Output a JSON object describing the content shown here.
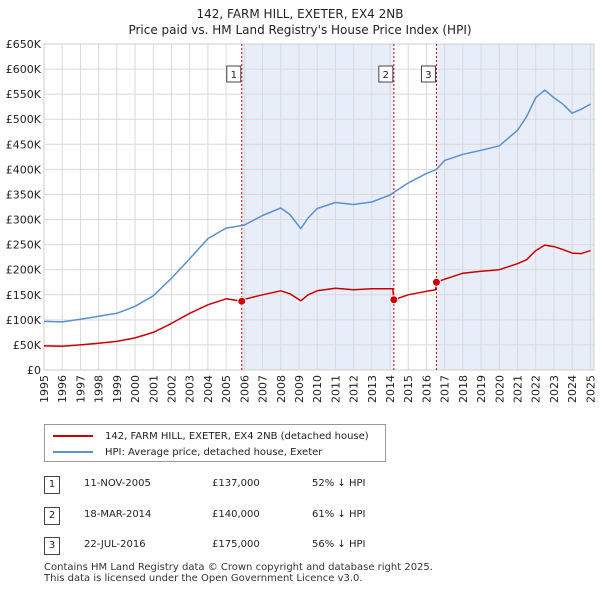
{
  "chart_data": {
    "type": "line",
    "title": "142, FARM HILL, EXETER, EX4 2NB",
    "subtitle": "Price paid vs. HM Land Registry's House Price Index (HPI)",
    "xlim": [
      1995,
      2025.2
    ],
    "ylim": [
      0,
      650000
    ],
    "x_ticks": [
      1995,
      1996,
      1997,
      1998,
      1999,
      2000,
      2001,
      2002,
      2003,
      2004,
      2005,
      2006,
      2007,
      2008,
      2009,
      2010,
      2011,
      2012,
      2013,
      2014,
      2015,
      2016,
      2017,
      2018,
      2019,
      2020,
      2021,
      2022,
      2023,
      2024,
      2025
    ],
    "y_ticks": [
      {
        "value": 0,
        "label": "£0"
      },
      {
        "value": 50000,
        "label": "£50K"
      },
      {
        "value": 100000,
        "label": "£100K"
      },
      {
        "value": 150000,
        "label": "£150K"
      },
      {
        "value": 200000,
        "label": "£200K"
      },
      {
        "value": 250000,
        "label": "£250K"
      },
      {
        "value": 300000,
        "label": "£300K"
      },
      {
        "value": 350000,
        "label": "£350K"
      },
      {
        "value": 400000,
        "label": "£400K"
      },
      {
        "value": 450000,
        "label": "£450K"
      },
      {
        "value": 500000,
        "label": "£500K"
      },
      {
        "value": 550000,
        "label": "£550K"
      },
      {
        "value": 600000,
        "label": "£600K"
      },
      {
        "value": 650000,
        "label": "£650K"
      }
    ],
    "shaded_spans": [
      [
        2005.86,
        2014.21
      ],
      [
        2016.55,
        2025.2
      ]
    ],
    "series": [
      {
        "name": "142, FARM HILL, EXETER, EX4 2NB (detached house)",
        "color": "#cc0000",
        "points": [
          [
            1995,
            48000
          ],
          [
            1996,
            47500
          ],
          [
            1997,
            50000
          ],
          [
            1998,
            53500
          ],
          [
            1999,
            57000
          ],
          [
            2000,
            64000
          ],
          [
            2001,
            75000
          ],
          [
            2002,
            93000
          ],
          [
            2003,
            113000
          ],
          [
            2004,
            130000
          ],
          [
            2005,
            142000
          ],
          [
            2005.86,
            137000
          ],
          [
            2006,
            141000
          ],
          [
            2007,
            150000
          ],
          [
            2008,
            158000
          ],
          [
            2008.5,
            152000
          ],
          [
            2009.1,
            138000
          ],
          [
            2009.5,
            150000
          ],
          [
            2010,
            158000
          ],
          [
            2011,
            163000
          ],
          [
            2012,
            160000
          ],
          [
            2013,
            162000
          ],
          [
            2014.15,
            162000
          ],
          [
            2014.21,
            140000
          ],
          [
            2015,
            150000
          ],
          [
            2016,
            157000
          ],
          [
            2016.5,
            160000
          ],
          [
            2016.55,
            175000
          ],
          [
            2017,
            181000
          ],
          [
            2018,
            193000
          ],
          [
            2019,
            197000
          ],
          [
            2020,
            200000
          ],
          [
            2021,
            212000
          ],
          [
            2021.5,
            220000
          ],
          [
            2022,
            238000
          ],
          [
            2022.5,
            249000
          ],
          [
            2023,
            246000
          ],
          [
            2023.5,
            240000
          ],
          [
            2024,
            233000
          ],
          [
            2024.5,
            232000
          ],
          [
            2025,
            238000
          ]
        ]
      },
      {
        "name": "HPI: Average price, detached house, Exeter",
        "color": "#5b8fd0",
        "points": [
          [
            1995,
            97000
          ],
          [
            1996,
            96000
          ],
          [
            1997,
            101000
          ],
          [
            1998,
            107000
          ],
          [
            1999,
            113000
          ],
          [
            2000,
            127000
          ],
          [
            2001,
            148000
          ],
          [
            2002,
            183000
          ],
          [
            2003,
            222000
          ],
          [
            2004,
            262000
          ],
          [
            2005,
            283000
          ],
          [
            2006,
            289000
          ],
          [
            2007,
            308000
          ],
          [
            2008,
            323000
          ],
          [
            2008.5,
            310000
          ],
          [
            2009.1,
            282000
          ],
          [
            2009.5,
            303000
          ],
          [
            2010,
            322000
          ],
          [
            2011,
            334000
          ],
          [
            2012,
            330000
          ],
          [
            2013,
            335000
          ],
          [
            2014,
            349000
          ],
          [
            2015,
            373000
          ],
          [
            2016,
            392000
          ],
          [
            2016.55,
            400000
          ],
          [
            2017,
            418000
          ],
          [
            2018,
            430000
          ],
          [
            2019,
            438000
          ],
          [
            2020,
            447000
          ],
          [
            2021,
            478000
          ],
          [
            2021.5,
            505000
          ],
          [
            2022,
            543000
          ],
          [
            2022.5,
            558000
          ],
          [
            2023,
            543000
          ],
          [
            2023.5,
            530000
          ],
          [
            2024,
            512000
          ],
          [
            2024.5,
            520000
          ],
          [
            2025,
            530000
          ]
        ]
      }
    ],
    "markers": [
      {
        "label": "1",
        "x": 2005.86,
        "y": 137000
      },
      {
        "label": "2",
        "x": 2014.21,
        "y": 140000
      },
      {
        "label": "3",
        "x": 2016.55,
        "y": 175000
      }
    ]
  },
  "legend": {
    "items": [
      {
        "label": "142, FARM HILL, EXETER, EX4 2NB (detached house)",
        "color": "#cc0000"
      },
      {
        "label": "HPI: Average price, detached house, Exeter",
        "color": "#5b8fd0"
      }
    ]
  },
  "sales": [
    {
      "num": "1",
      "date": "11-NOV-2005",
      "price": "£137,000",
      "hpi": "52% ↓ HPI"
    },
    {
      "num": "2",
      "date": "18-MAR-2014",
      "price": "£140,000",
      "hpi": "61% ↓ HPI"
    },
    {
      "num": "3",
      "date": "22-JUL-2016",
      "price": "£175,000",
      "hpi": "56% ↓ HPI"
    }
  ],
  "footer": {
    "line1": "Contains HM Land Registry data © Crown copyright and database right 2025.",
    "line2": "This data is licensed under the Open Government Licence v3.0."
  }
}
